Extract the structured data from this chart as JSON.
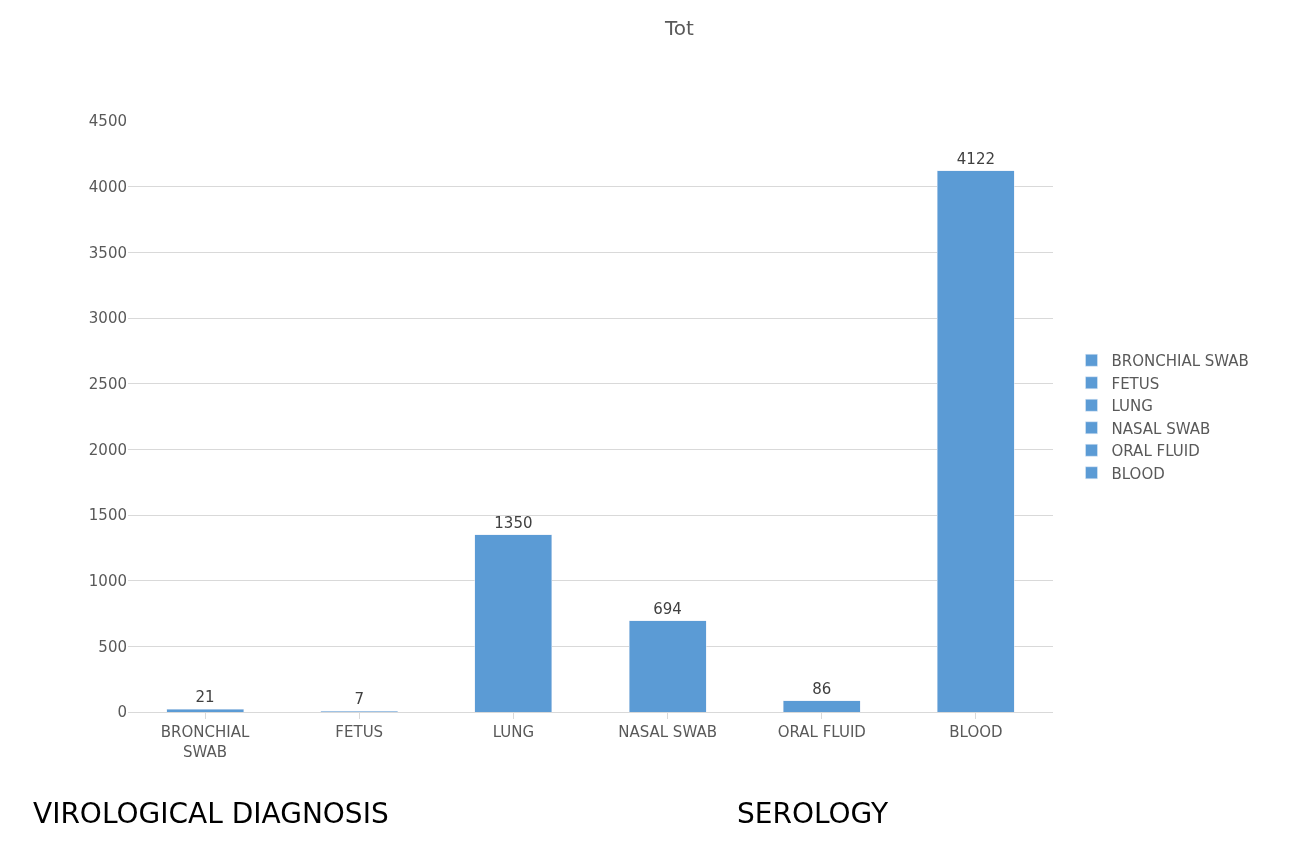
{
  "chart_data": {
    "type": "bar",
    "title": "Tot",
    "categories": [
      "BRONCHIAL SWAB",
      "FETUS",
      "LUNG",
      "NASAL SWAB",
      "ORAL FLUID",
      "BLOOD"
    ],
    "series": [
      {
        "name": "BRONCHIAL SWAB",
        "color": "#5b9bd5",
        "values": [
          21,
          null,
          null,
          null,
          null,
          null
        ]
      },
      {
        "name": "FETUS",
        "color": "#5b9bd5",
        "values": [
          null,
          7,
          null,
          null,
          null,
          null
        ]
      },
      {
        "name": "LUNG",
        "color": "#5b9bd5",
        "values": [
          null,
          null,
          1350,
          null,
          null,
          null
        ]
      },
      {
        "name": "NASAL SWAB",
        "color": "#5b9bd5",
        "values": [
          null,
          null,
          null,
          694,
          null,
          null
        ]
      },
      {
        "name": "ORAL FLUID",
        "color": "#5b9bd5",
        "values": [
          null,
          null,
          null,
          null,
          86,
          null
        ]
      },
      {
        "name": "BLOOD",
        "color": "#5b9bd5",
        "values": [
          null,
          null,
          null,
          null,
          null,
          4122
        ]
      }
    ],
    "stacked": true,
    "ylim": [
      0,
      4500
    ],
    "yticks": [
      0,
      500,
      1000,
      1500,
      2000,
      2500,
      3000,
      3500,
      4000,
      4500
    ],
    "grid": "y",
    "legend": "right",
    "data_labels": true,
    "annotations": [
      "VIROLOGICAL DIAGNOSIS",
      "SEROLOGY"
    ]
  }
}
